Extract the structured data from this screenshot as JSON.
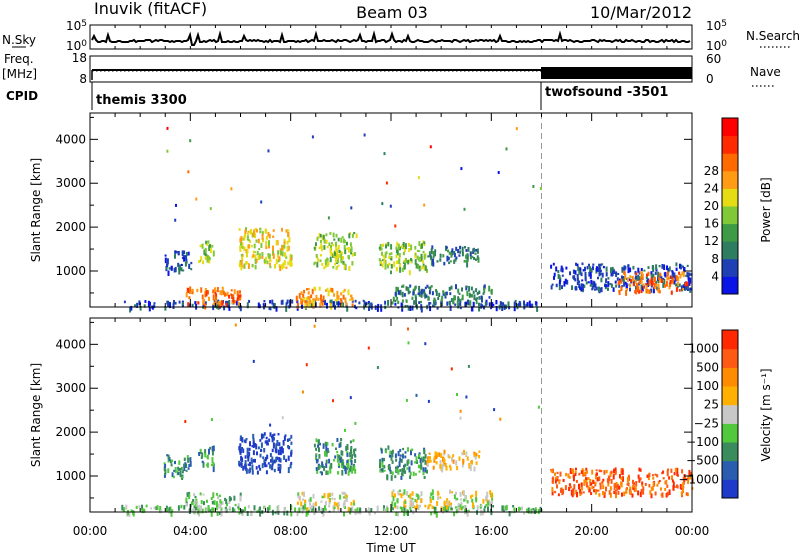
{
  "header": {
    "site": "Inuvik (fitACF)",
    "beam": "Beam 03",
    "date": "10/Mar/2012"
  },
  "strips": {
    "nsky_label": "N.Sky",
    "nsky_ticks": [
      "10^5",
      "10^0"
    ],
    "nsearch_label": "N.Search",
    "nsearch_ticks": [
      "10^5",
      "10^0"
    ],
    "freq_label_1": "Freq.",
    "freq_label_2": "[MHz]",
    "freq_ticks": [
      "18",
      "8"
    ],
    "nave_label": "Nave",
    "nave_ticks": [
      "60",
      "0"
    ],
    "cpid_label": "CPID",
    "programs": [
      {
        "name": "themis 3300",
        "start_hour": 0
      },
      {
        "name": "twofsound -3501",
        "start_hour": 18
      }
    ]
  },
  "chart_data": [
    {
      "type": "heatmap",
      "title": "",
      "xlabel": "Time UT",
      "ylabel": "Slant Range [km]",
      "xlim": [
        0,
        24
      ],
      "ylim": [
        180,
        4600
      ],
      "x_ticks": [
        "00:00",
        "04:00",
        "08:00",
        "12:00",
        "16:00",
        "20:00",
        "00:00"
      ],
      "y_ticks": [
        1000,
        2000,
        3000,
        4000
      ],
      "colorbar": {
        "label": "Power [dB]",
        "tick_labels": [
          "4",
          "8",
          "12",
          "16",
          "20",
          "24",
          "28"
        ],
        "colors": [
          "#0a14e6",
          "#1f3fb4",
          "#2f7d60",
          "#3f9a45",
          "#80c838",
          "#e6dc14",
          "#ff9b14",
          "#ff6a00",
          "#ff2a00",
          "#ff0000"
        ]
      },
      "scatter_regions": [
        {
          "t0": 1.2,
          "t1": 18.0,
          "r0": 180,
          "r1": 350,
          "level": 1
        },
        {
          "t0": 3.8,
          "t1": 6.0,
          "r0": 250,
          "r1": 650,
          "level": 7
        },
        {
          "t0": 8.2,
          "t1": 10.5,
          "r0": 250,
          "r1": 650,
          "level": 6
        },
        {
          "t0": 12.0,
          "t1": 16.0,
          "r0": 300,
          "r1": 700,
          "level": 2
        },
        {
          "t0": 2.9,
          "t1": 4.0,
          "r0": 1000,
          "r1": 1500,
          "level": 1
        },
        {
          "t0": 4.3,
          "t1": 4.9,
          "r0": 1200,
          "r1": 1700,
          "level": 4
        },
        {
          "t0": 5.9,
          "t1": 8.0,
          "r0": 1100,
          "r1": 2000,
          "level": 5
        },
        {
          "t0": 8.9,
          "t1": 10.6,
          "r0": 1100,
          "r1": 1900,
          "level": 4
        },
        {
          "t0": 11.5,
          "t1": 13.4,
          "r0": 1000,
          "r1": 1700,
          "level": 4
        },
        {
          "t0": 13.4,
          "t1": 15.5,
          "r0": 1200,
          "r1": 1600,
          "level": 2
        },
        {
          "t0": 18.3,
          "t1": 24.0,
          "r0": 600,
          "r1": 1200,
          "level": 1
        },
        {
          "t0": 21.0,
          "t1": 23.8,
          "r0": 550,
          "r1": 1000,
          "level": 7
        }
      ]
    },
    {
      "type": "heatmap",
      "title": "",
      "xlabel": "Time UT",
      "ylabel": "Slant Range [km]",
      "xlim": [
        0,
        24
      ],
      "ylim": [
        180,
        4600
      ],
      "x_ticks": [
        "00:00",
        "04:00",
        "08:00",
        "12:00",
        "16:00",
        "20:00",
        "00:00"
      ],
      "y_ticks": [
        1000,
        2000,
        3000,
        4000
      ],
      "colorbar": {
        "label": "Velocity [m s⁻¹]",
        "tick_labels": [
          "1000",
          "500",
          "100",
          "25",
          "−25",
          "−100",
          "−500",
          "−1000"
        ],
        "colors": [
          "#1e3ac8",
          "#2a5db0",
          "#3a8c5c",
          "#52c83c",
          "#c8c8c8",
          "#ffb000",
          "#ff8c00",
          "#ff5a14",
          "#ff2800"
        ]
      },
      "scatter_regions": [
        {
          "t0": 1.2,
          "t1": 18.0,
          "r0": 180,
          "r1": 350,
          "level": 3
        },
        {
          "t0": 3.8,
          "t1": 6.0,
          "r0": 250,
          "r1": 650,
          "level": 3
        },
        {
          "t0": 8.2,
          "t1": 10.5,
          "r0": 250,
          "r1": 650,
          "level": 4
        },
        {
          "t0": 12.0,
          "t1": 16.0,
          "r0": 300,
          "r1": 700,
          "level": 4
        },
        {
          "t0": 2.9,
          "t1": 4.0,
          "r0": 1000,
          "r1": 1500,
          "level": 2
        },
        {
          "t0": 4.3,
          "t1": 4.9,
          "r0": 1200,
          "r1": 1700,
          "level": 2
        },
        {
          "t0": 5.9,
          "t1": 8.0,
          "r0": 1100,
          "r1": 2000,
          "level": 0
        },
        {
          "t0": 8.9,
          "t1": 10.6,
          "r0": 1100,
          "r1": 1900,
          "level": 2
        },
        {
          "t0": 11.5,
          "t1": 13.4,
          "r0": 1000,
          "r1": 1700,
          "level": 2
        },
        {
          "t0": 13.4,
          "t1": 15.5,
          "r0": 1200,
          "r1": 1600,
          "level": 5
        },
        {
          "t0": 18.3,
          "t1": 24.0,
          "r0": 600,
          "r1": 1200,
          "level": 7
        }
      ]
    }
  ],
  "style": {
    "dashed_line_hour": 18,
    "frame_color": "#000000",
    "dash_color": "#999999"
  }
}
